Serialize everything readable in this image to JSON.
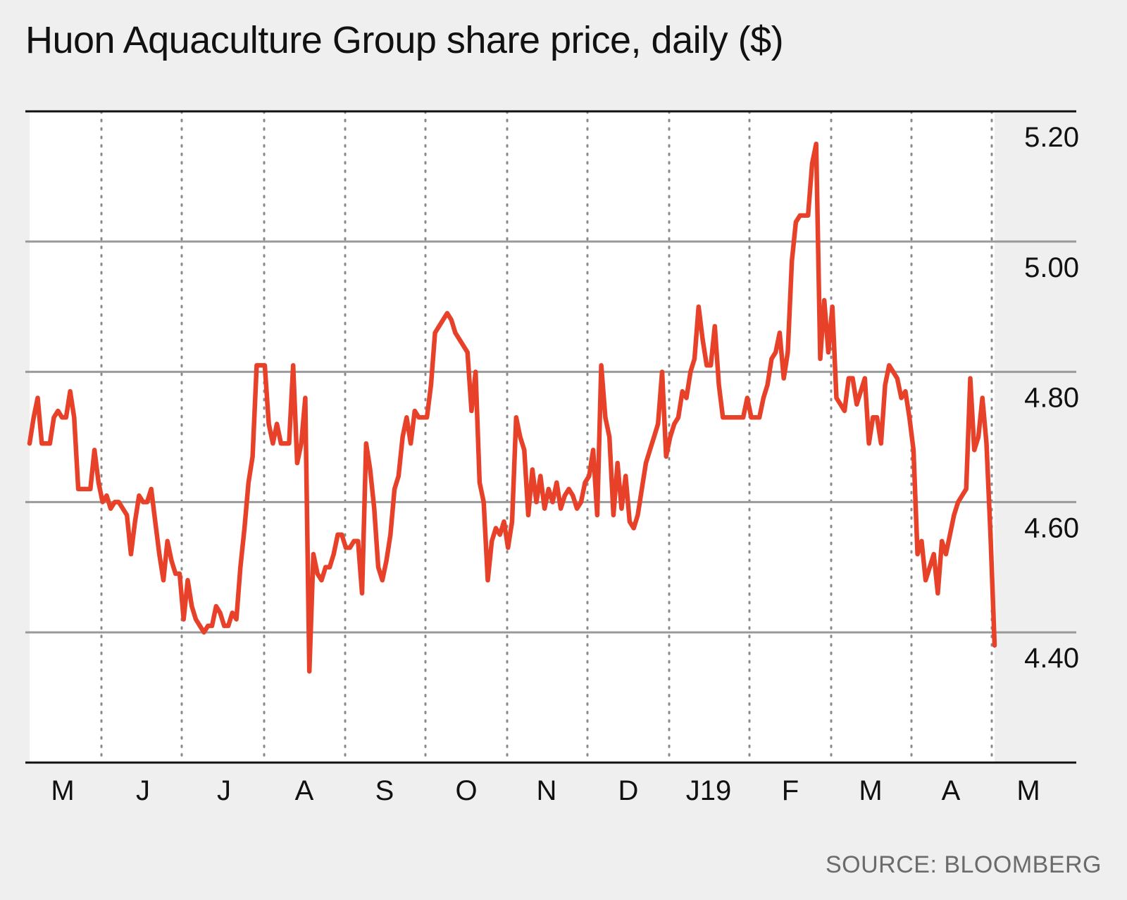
{
  "chart_data": {
    "type": "line",
    "title": "Huon Aquaculture Group share price, daily ($)",
    "source": "SOURCE: BLOOMBERG",
    "xlabel": "",
    "ylabel": "",
    "ylim": [
      4.2,
      5.2
    ],
    "yticks": [
      4.4,
      4.6,
      4.8,
      5.0,
      5.2
    ],
    "ytick_labels": [
      "4.40",
      "4.60",
      "4.80",
      "5.00",
      "5.20"
    ],
    "x_tick_labels": [
      "M",
      "J",
      "J",
      "A",
      "S",
      "O",
      "N",
      "D",
      "J19",
      "F",
      "M",
      "A",
      "M"
    ],
    "grid": "horizontal solid, vertical dotted",
    "colors": {
      "line": "#e8412a",
      "fill": "#ffffff",
      "background": "#efefef"
    },
    "series": [
      {
        "values": [
          4.69,
          4.73,
          4.76,
          4.69,
          4.69,
          4.69,
          4.73,
          4.74,
          4.73,
          4.73,
          4.77,
          4.73,
          4.62,
          4.62,
          4.62,
          4.62,
          4.68,
          4.63,
          4.6,
          4.61,
          4.59,
          4.6,
          4.6,
          4.59,
          4.58,
          4.52,
          4.57,
          4.61,
          4.6,
          4.6,
          4.62,
          4.57,
          4.52,
          4.48,
          4.54,
          4.51,
          4.49,
          4.49,
          4.42,
          4.48,
          4.44,
          4.42,
          4.41,
          4.4,
          4.41,
          4.41,
          4.44,
          4.43,
          4.41,
          4.41,
          4.43,
          4.42,
          4.5,
          4.56,
          4.63,
          4.67,
          4.81,
          4.81,
          4.81,
          4.72,
          4.69,
          4.72,
          4.69,
          4.69,
          4.69,
          4.81,
          4.66,
          4.69,
          4.76,
          4.34,
          4.52,
          4.49,
          4.48,
          4.5,
          4.5,
          4.52,
          4.55,
          4.55,
          4.53,
          4.53,
          4.54,
          4.54,
          4.46,
          4.69,
          4.65,
          4.59,
          4.5,
          4.48,
          4.51,
          4.55,
          4.62,
          4.64,
          4.7,
          4.73,
          4.69,
          4.74,
          4.73,
          4.73,
          4.73,
          4.78,
          4.86,
          4.87,
          4.88,
          4.89,
          4.88,
          4.86,
          4.85,
          4.84,
          4.83,
          4.74,
          4.8,
          4.63,
          4.6,
          4.48,
          4.54,
          4.56,
          4.55,
          4.57,
          4.53,
          4.57,
          4.73,
          4.7,
          4.68,
          4.58,
          4.65,
          4.6,
          4.64,
          4.59,
          4.62,
          4.6,
          4.63,
          4.59,
          4.61,
          4.62,
          4.61,
          4.59,
          4.6,
          4.63,
          4.64,
          4.68,
          4.58,
          4.81,
          4.73,
          4.7,
          4.58,
          4.66,
          4.59,
          4.64,
          4.57,
          4.56,
          4.58,
          4.62,
          4.66,
          4.68,
          4.7,
          4.72,
          4.8,
          4.67,
          4.7,
          4.72,
          4.73,
          4.77,
          4.76,
          4.8,
          4.82,
          4.9,
          4.85,
          4.81,
          4.81,
          4.87,
          4.78,
          4.73,
          4.73,
          4.73,
          4.73,
          4.73,
          4.73,
          4.76,
          4.73,
          4.73,
          4.73,
          4.76,
          4.78,
          4.82,
          4.83,
          4.86,
          4.79,
          4.83,
          4.97,
          5.03,
          5.04,
          5.04,
          5.04,
          5.12,
          5.15,
          4.82,
          4.91,
          4.83,
          4.9,
          4.76,
          4.75,
          4.74,
          4.79,
          4.79,
          4.75,
          4.77,
          4.79,
          4.69,
          4.73,
          4.73,
          4.69,
          4.78,
          4.81,
          4.8,
          4.79,
          4.76,
          4.77,
          4.73,
          4.68,
          4.52,
          4.54,
          4.48,
          4.5,
          4.52,
          4.46,
          4.54,
          4.52,
          4.55,
          4.58,
          4.6,
          4.61,
          4.62,
          4.79,
          4.68,
          4.7,
          4.76,
          4.69,
          4.55,
          4.38
        ]
      }
    ]
  }
}
